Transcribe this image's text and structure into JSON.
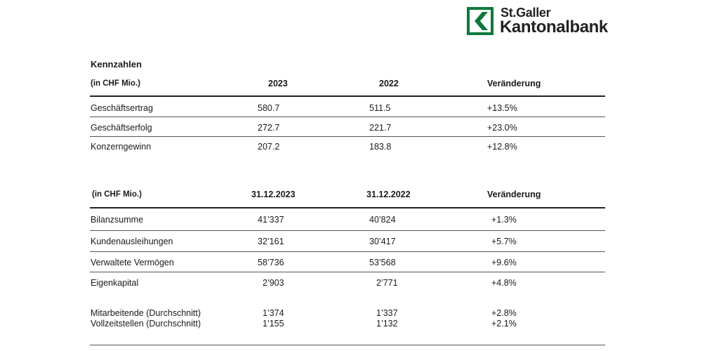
{
  "brand": {
    "name_line1": "St.Galler",
    "name_line2": "Kantonalbank",
    "color": "#0a7a3b"
  },
  "title": "Kennzahlen",
  "table1": {
    "unit": "(in CHF Mio.)",
    "headers": [
      "2023",
      "2022",
      "Veränderung"
    ],
    "rows": [
      {
        "label": "Geschäftsertrag",
        "v1": "580.7",
        "v2": "511.5",
        "chg": "+13.5%"
      },
      {
        "label": "Geschäftserfolg",
        "v1": "272.7",
        "v2": "221.7",
        "chg": "+23.0%"
      },
      {
        "label": "Konzerngewinn",
        "v1": "207.2",
        "v2": "183.8",
        "chg": "+12.8%"
      }
    ]
  },
  "table2": {
    "unit": "(in CHF Mio.)",
    "headers": [
      "31.12.2023",
      "31.12.2022",
      "Veränderung"
    ],
    "rows": [
      {
        "label": "Bilanzsumme",
        "v1": "41’337",
        "v2": "40’824",
        "chg": "+1.3%"
      },
      {
        "label": "Kundenausleihungen",
        "v1": "32’161",
        "v2": "30’417",
        "chg": "+5.7%"
      },
      {
        "label": "Verwaltete Vermögen",
        "v1": "58’736",
        "v2": "53’568",
        "chg": "+9.6%"
      },
      {
        "label": "Eigenkapital",
        "v1": "2’903",
        "v2": "2’771",
        "chg": "+4.8%"
      }
    ],
    "staff": [
      {
        "label": "Mitarbeitende (Durchschnitt)",
        "v1": "1’374",
        "v2": "1’337",
        "chg": "+2.8%"
      },
      {
        "label": "Vollzeitstellen (Durchschnitt)",
        "v1": "1’155",
        "v2": "1’132",
        "chg": "+2.1%"
      }
    ]
  }
}
